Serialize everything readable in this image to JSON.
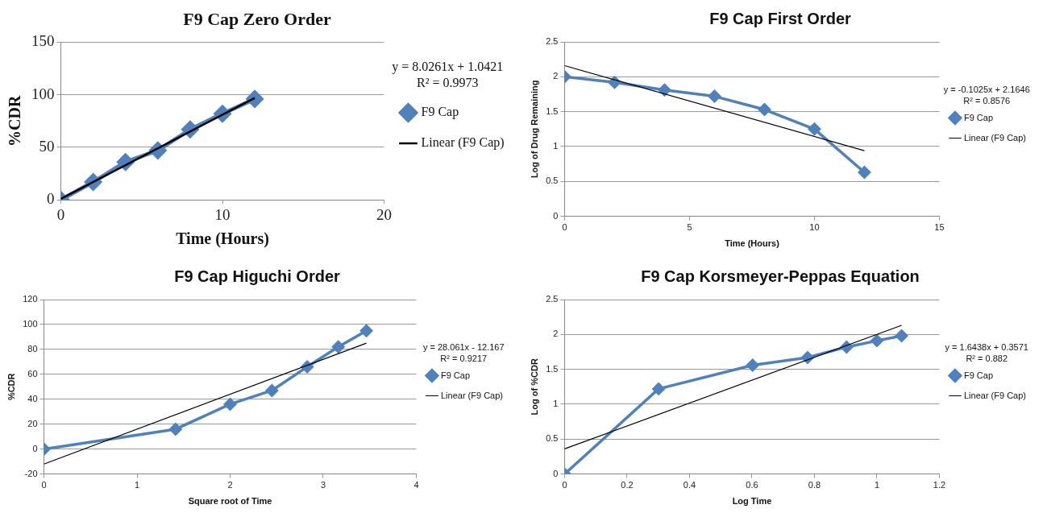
{
  "chart_data": [
    {
      "type": "line",
      "title": "F9 Cap Zero Order",
      "xlabel": "Time (Hours)",
      "ylabel": "%CDR",
      "xlim": [
        0,
        20
      ],
      "xticks": [
        0,
        10,
        20
      ],
      "ylim": [
        0,
        150
      ],
      "yticks": [
        0,
        50,
        100,
        150
      ],
      "grid": "y",
      "legend": "right",
      "annotations": [
        "y = 8.0261x + 1.0421",
        "R² = 0.9973"
      ],
      "series": [
        {
          "name": "F9 Cap",
          "color": "#4f81bd",
          "marker": "diamond",
          "x": [
            0,
            2,
            4,
            6,
            8,
            10,
            12
          ],
          "values": [
            0,
            17,
            36,
            47,
            67,
            82,
            96
          ]
        },
        {
          "name": "Linear (F9 Cap)",
          "color": "#000000",
          "type": "line",
          "marker": "none",
          "x": [
            0,
            12
          ],
          "values": [
            1,
            97
          ]
        }
      ]
    },
    {
      "type": "line",
      "title": "F9 Cap First Order",
      "xlabel": "Time (Hours)",
      "ylabel": "Log of Drug Remaining",
      "xlim": [
        0,
        15
      ],
      "xticks": [
        0,
        5,
        10,
        15
      ],
      "ylim": [
        0,
        2.5
      ],
      "yticks": [
        0,
        0.5,
        1,
        1.5,
        2,
        2.5
      ],
      "grid": "y",
      "legend": "right",
      "annotations": [
        "y = -0.1025x + 2.1646",
        "R² = 0.8576"
      ],
      "series": [
        {
          "name": "F9 Cap",
          "color": "#4f81bd",
          "marker": "diamond",
          "x": [
            0,
            2,
            4,
            6,
            8,
            10,
            12
          ],
          "values": [
            2,
            1.92,
            1.81,
            1.72,
            1.53,
            1.25,
            0.63
          ]
        },
        {
          "name": "Linear (F9 Cap)",
          "color": "#000000",
          "type": "line",
          "marker": "none",
          "x": [
            0,
            12
          ],
          "values": [
            2.16,
            0.94
          ]
        }
      ]
    },
    {
      "type": "line",
      "title": "F9 Cap Higuchi Order",
      "xlabel": "Square root of Time",
      "ylabel": "%CDR",
      "xlim": [
        0,
        4
      ],
      "xticks": [
        0,
        1,
        2,
        3,
        4
      ],
      "ylim": [
        -20,
        120
      ],
      "yticks": [
        -20,
        0,
        20,
        40,
        60,
        80,
        100,
        120
      ],
      "grid": "y",
      "legend": "right",
      "annotations": [
        "y = 28.061x - 12.167",
        "R² = 0.9217"
      ],
      "series": [
        {
          "name": "F9 Cap",
          "color": "#4f81bd",
          "marker": "diamond",
          "x": [
            0,
            1.414,
            2,
            2.449,
            2.828,
            3.162,
            3.464
          ],
          "values": [
            0,
            16,
            36,
            47,
            66,
            82,
            95
          ]
        },
        {
          "name": "Linear (F9 Cap)",
          "color": "#000000",
          "type": "line",
          "marker": "none",
          "x": [
            0,
            3.464
          ],
          "values": [
            -12,
            85
          ]
        }
      ]
    },
    {
      "type": "line",
      "title": "F9 Cap Korsmeyer-Peppas Equation",
      "xlabel": "Log Time",
      "ylabel": "Log of %CDR",
      "xlim": [
        0,
        1.2
      ],
      "xticks": [
        0,
        0.2,
        0.4,
        0.6,
        0.8,
        1,
        1.2
      ],
      "ylim": [
        0,
        2.5
      ],
      "yticks": [
        0,
        0.5,
        1,
        1.5,
        2,
        2.5
      ],
      "grid": "y",
      "legend": "right",
      "annotations": [
        "y = 1.6438x + 0.3571",
        "R² = 0.882"
      ],
      "series": [
        {
          "name": "F9 Cap",
          "color": "#4f81bd",
          "marker": "diamond",
          "x": [
            0,
            0.301,
            0.602,
            0.778,
            0.903,
            1,
            1.079
          ],
          "values": [
            0,
            1.22,
            1.56,
            1.67,
            1.82,
            1.91,
            1.98
          ]
        },
        {
          "name": "Linear (F9 Cap)",
          "color": "#000000",
          "type": "line",
          "marker": "none",
          "x": [
            0,
            1.079
          ],
          "values": [
            0.36,
            2.13
          ]
        }
      ]
    }
  ]
}
